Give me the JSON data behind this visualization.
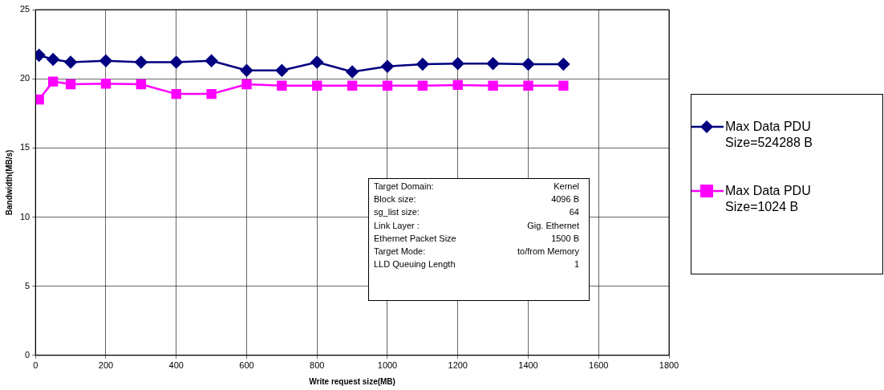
{
  "chart_data": {
    "type": "line",
    "xlabel": "Write request size(MB)",
    "ylabel": "Bandwidth(MB/s)",
    "x": [
      10,
      50,
      100,
      200,
      300,
      400,
      500,
      600,
      700,
      800,
      900,
      1000,
      1100,
      1200,
      1300,
      1400,
      1500
    ],
    "series": [
      {
        "name": "Max Data PDU Size=524288 B",
        "color": "#000080",
        "marker": "diamond",
        "values": [
          21.7,
          21.4,
          21.2,
          21.3,
          21.2,
          21.2,
          21.3,
          20.6,
          20.6,
          21.2,
          20.5,
          20.9,
          21.05,
          21.1,
          21.1,
          21.05,
          21.05
        ]
      },
      {
        "name": "Max Data PDU Size=1024 B",
        "color": "#ff00ff",
        "marker": "square",
        "values": [
          18.5,
          19.8,
          19.6,
          19.65,
          19.6,
          18.9,
          18.9,
          19.6,
          19.5,
          19.5,
          19.5,
          19.5,
          19.5,
          19.55,
          19.5,
          19.5,
          19.5
        ]
      }
    ],
    "xlim": [
      0,
      1800
    ],
    "xticks": [
      0,
      200,
      400,
      600,
      800,
      1000,
      1200,
      1400,
      1600,
      1800
    ],
    "ylim": [
      0,
      25
    ],
    "yticks": [
      0,
      5,
      10,
      15,
      20,
      25
    ],
    "grid": true,
    "legend": "right",
    "annotations": [
      "Target Domain:",
      "Kernel",
      "Block size:",
      "4096 B",
      "sg_list size:",
      "64",
      "Link Layer :",
      "Gig. Ethernet",
      "Ethernet Packet Size",
      "1500 B",
      "Target Mode:",
      "to/from Memory",
      "LLD Queuing Length",
      "1"
    ]
  }
}
